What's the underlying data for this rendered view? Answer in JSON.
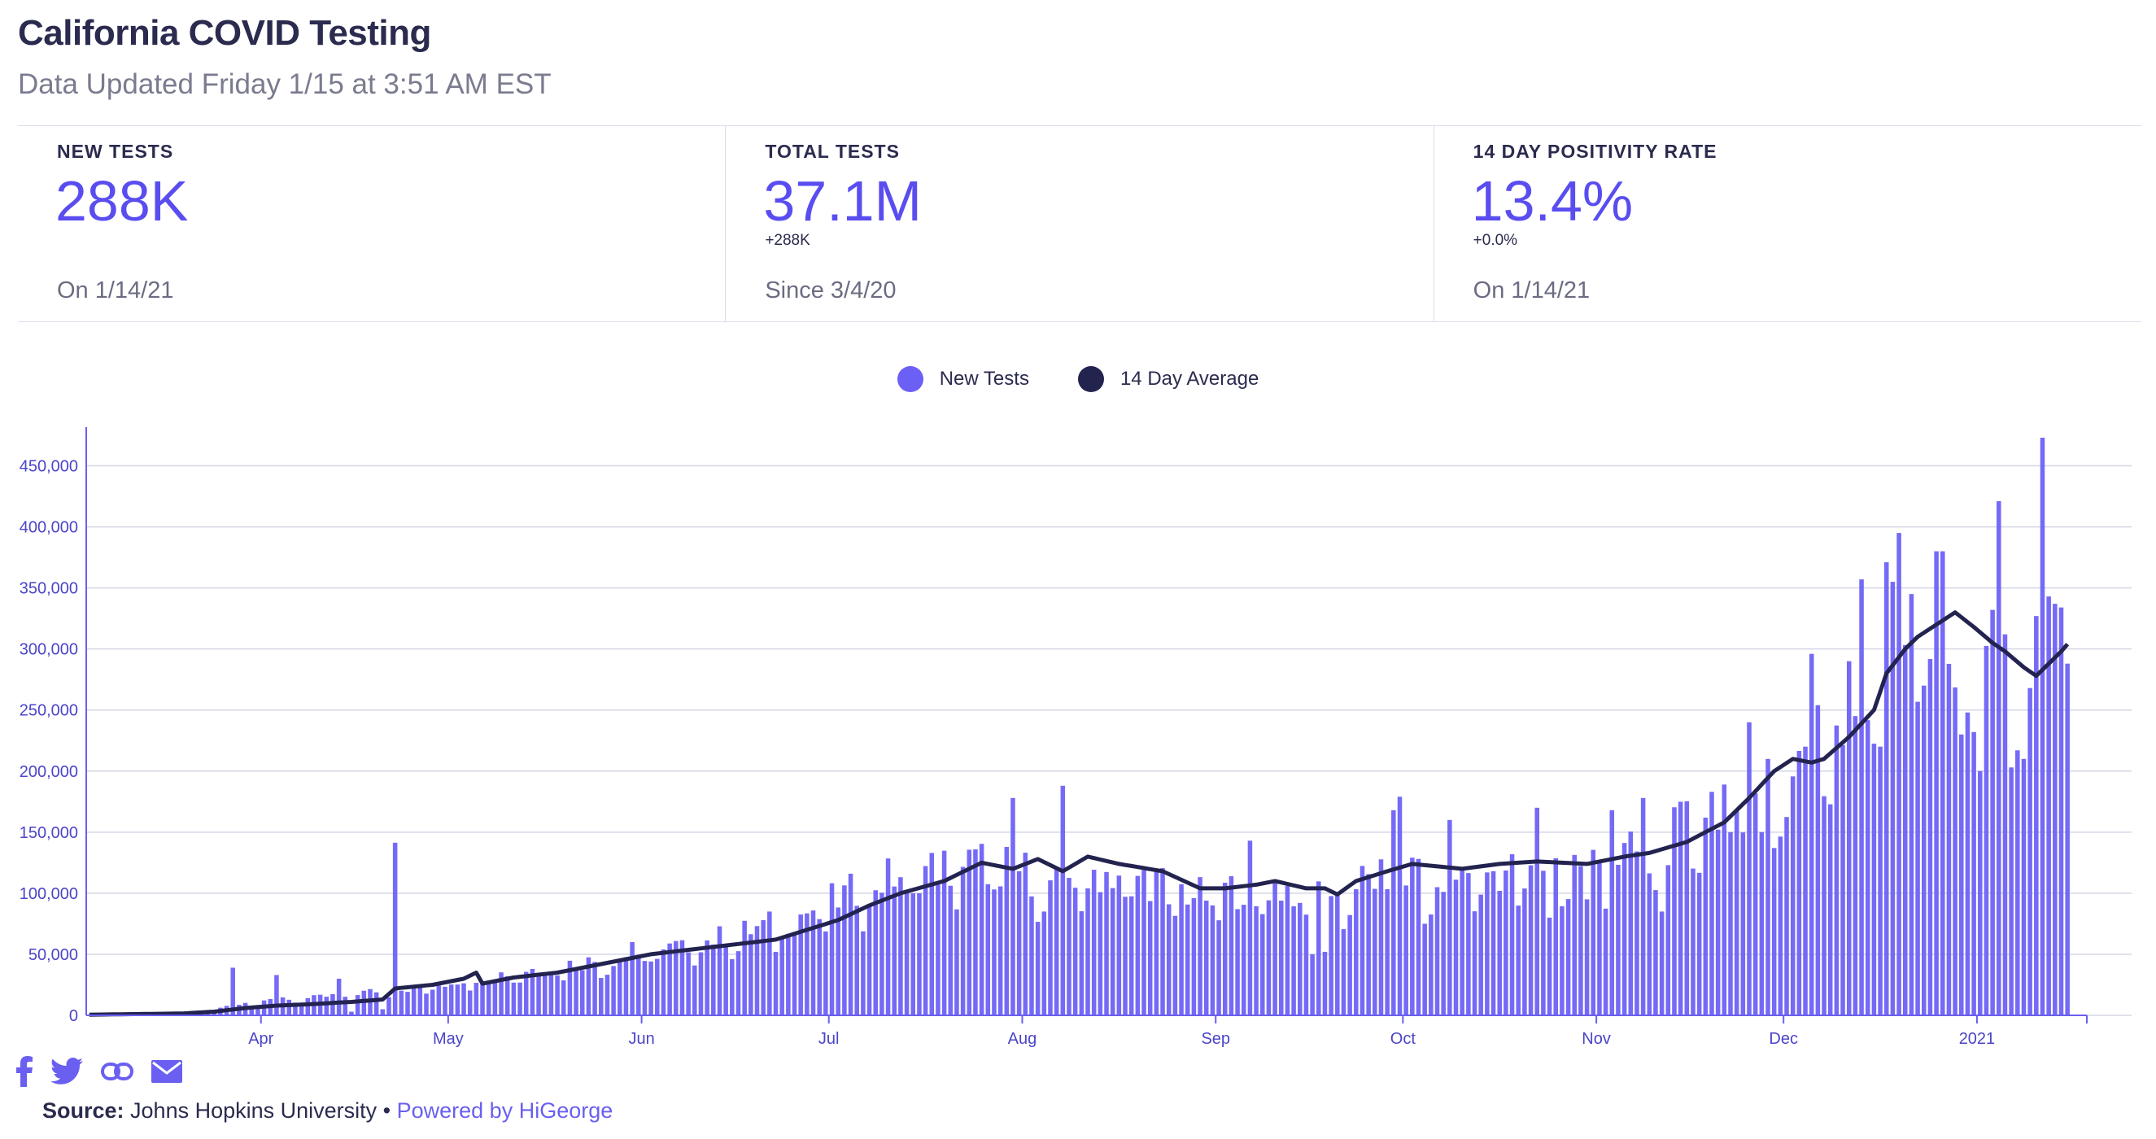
{
  "header": {
    "title": "California COVID Testing",
    "subtitle": "Data Updated Friday 1/15 at 3:51 AM EST"
  },
  "stats": [
    {
      "label": "NEW TESTS",
      "value": "288K",
      "change": "",
      "foot": "On 1/14/21"
    },
    {
      "label": "TOTAL TESTS",
      "value": "37.1M",
      "change": "+288K",
      "foot": "Since 3/4/20"
    },
    {
      "label": "14 DAY POSITIVITY RATE",
      "value": "13.4%",
      "change": "+0.0%",
      "foot": "On 1/14/21"
    }
  ],
  "legend": {
    "new_tests": "New Tests",
    "avg": "14 Day Average"
  },
  "colors": {
    "bar": "#6b5ff5",
    "line": "#23234f",
    "accent": "#5a4df0"
  },
  "chart_data": {
    "type": "bar",
    "title": "California COVID Testing",
    "start_date": "2020-03-04",
    "end_date": "2021-01-14",
    "ylim": [
      0,
      475000
    ],
    "yticks": [
      0,
      50000,
      100000,
      150000,
      200000,
      250000,
      300000,
      350000,
      400000,
      450000
    ],
    "ytick_labels": [
      "0",
      "50,000",
      "100,000",
      "150,000",
      "200,000",
      "250,000",
      "300,000",
      "350,000",
      "400,000",
      "450,000"
    ],
    "xticks": [
      {
        "label": "Apr",
        "day": 28
      },
      {
        "label": "May",
        "day": 58
      },
      {
        "label": "Jun",
        "day": 89
      },
      {
        "label": "Jul",
        "day": 119
      },
      {
        "label": "Aug",
        "day": 150
      },
      {
        "label": "Sep",
        "day": 181
      },
      {
        "label": "Oct",
        "day": 211
      },
      {
        "label": "Nov",
        "day": 242
      },
      {
        "label": "Dec",
        "day": 272
      },
      {
        "label": "2021",
        "day": 303
      }
    ],
    "bar_anchors": [
      [
        0,
        300
      ],
      [
        12,
        1000
      ],
      [
        16,
        2500
      ],
      [
        20,
        5000
      ],
      [
        24,
        10000
      ],
      [
        28,
        14000
      ],
      [
        35,
        14000
      ],
      [
        42,
        18000
      ],
      [
        48,
        22000
      ],
      [
        49,
        165000
      ],
      [
        50,
        22000
      ],
      [
        56,
        25000
      ],
      [
        60,
        30000
      ],
      [
        70,
        38000
      ],
      [
        80,
        45000
      ],
      [
        88,
        50000
      ],
      [
        95,
        58000
      ],
      [
        105,
        70000
      ],
      [
        112,
        80000
      ],
      [
        119,
        95000
      ],
      [
        125,
        110000
      ],
      [
        130,
        118000
      ],
      [
        137,
        125000
      ],
      [
        143,
        128000
      ],
      [
        150,
        120000
      ],
      [
        155,
        110000
      ],
      [
        160,
        120000
      ],
      [
        167,
        118000
      ],
      [
        172,
        110000
      ],
      [
        178,
        100000
      ],
      [
        183,
        105000
      ],
      [
        188,
        110000
      ],
      [
        193,
        105000
      ],
      [
        200,
        100000
      ],
      [
        203,
        110000
      ],
      [
        210,
        120000
      ],
      [
        217,
        118000
      ],
      [
        223,
        120000
      ],
      [
        230,
        122000
      ],
      [
        236,
        128000
      ],
      [
        242,
        130000
      ],
      [
        248,
        135000
      ],
      [
        254,
        150000
      ],
      [
        260,
        180000
      ],
      [
        266,
        200000
      ],
      [
        272,
        210000
      ],
      [
        278,
        240000
      ],
      [
        283,
        270000
      ],
      [
        288,
        300000
      ],
      [
        292,
        310000
      ],
      [
        296,
        320000
      ],
      [
        300,
        310000
      ],
      [
        305,
        300000
      ],
      [
        309,
        300000
      ],
      [
        315,
        310000
      ]
    ],
    "bar_spikes": [
      [
        23,
        39000
      ],
      [
        26,
        6000
      ],
      [
        30,
        33000
      ],
      [
        40,
        30000
      ],
      [
        42,
        3000
      ],
      [
        47,
        5000
      ],
      [
        87,
        60000
      ],
      [
        110,
        52000
      ],
      [
        148,
        178000
      ],
      [
        156,
        188000
      ],
      [
        153,
        85000
      ],
      [
        186,
        143000
      ],
      [
        196,
        50000
      ],
      [
        198,
        52000
      ],
      [
        209,
        168000
      ],
      [
        210,
        179000
      ],
      [
        214,
        75000
      ],
      [
        218,
        160000
      ],
      [
        232,
        170000
      ],
      [
        234,
        80000
      ],
      [
        240,
        95000
      ],
      [
        244,
        168000
      ],
      [
        249,
        178000
      ],
      [
        252,
        85000
      ],
      [
        263,
        150000
      ],
      [
        266,
        240000
      ],
      [
        268,
        150000
      ],
      [
        269,
        210000
      ],
      [
        270,
        137000
      ],
      [
        276,
        296000
      ],
      [
        282,
        290000
      ],
      [
        284,
        357000
      ],
      [
        287,
        220000
      ],
      [
        288,
        371000
      ],
      [
        289,
        355000
      ],
      [
        290,
        395000
      ],
      [
        292,
        345000
      ],
      [
        294,
        270000
      ],
      [
        296,
        380000
      ],
      [
        297,
        380000
      ],
      [
        300,
        230000
      ],
      [
        301,
        248000
      ],
      [
        302,
        232000
      ],
      [
        303,
        200000
      ],
      [
        305,
        332000
      ],
      [
        306,
        421000
      ],
      [
        307,
        312000
      ],
      [
        308,
        203000
      ],
      [
        309,
        217000
      ],
      [
        310,
        210000
      ],
      [
        311,
        268000
      ],
      [
        312,
        327000
      ],
      [
        313,
        473000
      ],
      [
        314,
        343000
      ],
      [
        315,
        337000
      ],
      [
        316,
        334000
      ],
      [
        317,
        288000
      ]
    ],
    "avg_anchors": [
      [
        0,
        500
      ],
      [
        15,
        1500
      ],
      [
        20,
        3000
      ],
      [
        25,
        6000
      ],
      [
        30,
        8000
      ],
      [
        35,
        9000
      ],
      [
        42,
        11000
      ],
      [
        47,
        13000
      ],
      [
        49,
        22000
      ],
      [
        55,
        25000
      ],
      [
        60,
        30000
      ],
      [
        62,
        35000
      ],
      [
        63,
        26000
      ],
      [
        68,
        31000
      ],
      [
        75,
        35000
      ],
      [
        82,
        42000
      ],
      [
        90,
        50000
      ],
      [
        100,
        56000
      ],
      [
        110,
        62000
      ],
      [
        120,
        78000
      ],
      [
        125,
        90000
      ],
      [
        130,
        100000
      ],
      [
        137,
        110000
      ],
      [
        143,
        125000
      ],
      [
        148,
        120000
      ],
      [
        152,
        128000
      ],
      [
        156,
        118000
      ],
      [
        160,
        130000
      ],
      [
        165,
        124000
      ],
      [
        172,
        118000
      ],
      [
        178,
        104000
      ],
      [
        182,
        104000
      ],
      [
        187,
        107000
      ],
      [
        190,
        110000
      ],
      [
        195,
        104000
      ],
      [
        198,
        104000
      ],
      [
        200,
        99000
      ],
      [
        203,
        110000
      ],
      [
        208,
        118000
      ],
      [
        212,
        124000
      ],
      [
        216,
        122000
      ],
      [
        220,
        120000
      ],
      [
        226,
        124000
      ],
      [
        232,
        126000
      ],
      [
        240,
        124000
      ],
      [
        246,
        130000
      ],
      [
        250,
        133000
      ],
      [
        256,
        142000
      ],
      [
        262,
        158000
      ],
      [
        266,
        178000
      ],
      [
        270,
        200000
      ],
      [
        273,
        210000
      ],
      [
        276,
        207000
      ],
      [
        278,
        210000
      ],
      [
        282,
        228000
      ],
      [
        286,
        250000
      ],
      [
        288,
        280000
      ],
      [
        291,
        300000
      ],
      [
        293,
        310000
      ],
      [
        296,
        320000
      ],
      [
        299,
        330000
      ],
      [
        302,
        318000
      ],
      [
        305,
        305000
      ],
      [
        307,
        298000
      ],
      [
        310,
        285000
      ],
      [
        312,
        278000
      ],
      [
        314,
        288000
      ],
      [
        316,
        298000
      ],
      [
        317,
        304000
      ]
    ],
    "series": [
      {
        "name": "New Tests",
        "kind": "bar"
      },
      {
        "name": "14 Day Average",
        "kind": "line"
      }
    ]
  },
  "footer": {
    "source_label": "Source:",
    "source_text": " Johns Hopkins University • ",
    "powered": "Powered by HiGeorge",
    "share": [
      "facebook",
      "twitter",
      "link",
      "email"
    ]
  }
}
